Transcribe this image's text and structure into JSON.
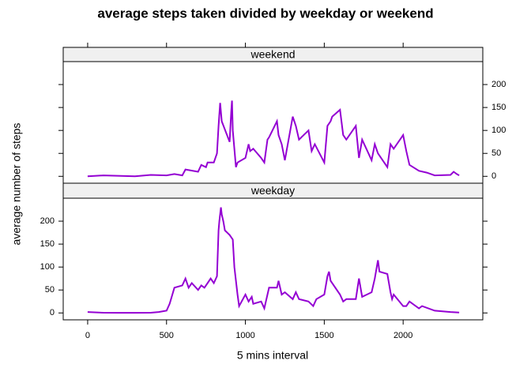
{
  "chart_data": {
    "type": "line",
    "title": "average steps taken divided by weekday or weekend",
    "xlabel": "5 mins interval",
    "ylabel": "average number of steps",
    "color": "#9400d3",
    "xlim": [
      -155,
      2505
    ],
    "ylim": [
      -15,
      250
    ],
    "xticks": [
      0,
      500,
      1000,
      1500,
      2000
    ],
    "yticks": [
      0,
      50,
      100,
      150,
      200
    ],
    "panels": [
      {
        "name": "weekend",
        "x": [
          0,
          100,
          300,
          400,
          500,
          550,
          600,
          620,
          700,
          720,
          750,
          760,
          800,
          820,
          830,
          840,
          850,
          900,
          910,
          915,
          920,
          940,
          950,
          1000,
          1020,
          1030,
          1050,
          1100,
          1120,
          1140,
          1150,
          1200,
          1210,
          1230,
          1250,
          1300,
          1320,
          1340,
          1400,
          1420,
          1440,
          1500,
          1520,
          1540,
          1550,
          1600,
          1620,
          1640,
          1700,
          1720,
          1740,
          1800,
          1820,
          1840,
          1900,
          1920,
          1940,
          2000,
          2020,
          2040,
          2100,
          2150,
          2200,
          2300,
          2320,
          2340,
          2355
        ],
        "values": [
          0,
          2,
          0,
          3,
          2,
          5,
          2,
          15,
          10,
          25,
          20,
          30,
          30,
          50,
          110,
          160,
          120,
          75,
          140,
          165,
          100,
          20,
          30,
          40,
          70,
          55,
          60,
          40,
          30,
          80,
          85,
          120,
          90,
          70,
          35,
          130,
          110,
          80,
          100,
          55,
          70,
          30,
          110,
          120,
          130,
          145,
          90,
          80,
          110,
          40,
          80,
          35,
          70,
          50,
          20,
          70,
          60,
          90,
          55,
          25,
          12,
          8,
          2,
          3,
          10,
          5,
          2
        ]
      },
      {
        "name": "weekday",
        "x": [
          0,
          100,
          200,
          300,
          400,
          450,
          500,
          520,
          550,
          600,
          620,
          640,
          660,
          700,
          720,
          740,
          760,
          780,
          800,
          820,
          830,
          835,
          845,
          850,
          860,
          870,
          900,
          920,
          930,
          950,
          960,
          1000,
          1020,
          1040,
          1050,
          1100,
          1120,
          1140,
          1150,
          1200,
          1210,
          1230,
          1250,
          1300,
          1320,
          1340,
          1400,
          1430,
          1450,
          1500,
          1520,
          1530,
          1540,
          1600,
          1620,
          1640,
          1700,
          1720,
          1730,
          1740,
          1800,
          1820,
          1840,
          1850,
          1900,
          1920,
          1930,
          1940,
          2000,
          2020,
          2040,
          2100,
          2120,
          2200,
          2300,
          2355
        ],
        "values": [
          2,
          0.5,
          0.4,
          0.3,
          0.5,
          2,
          5,
          20,
          55,
          60,
          75,
          55,
          65,
          50,
          60,
          55,
          65,
          75,
          65,
          80,
          180,
          200,
          230,
          215,
          200,
          180,
          170,
          160,
          100,
          40,
          15,
          40,
          25,
          35,
          20,
          25,
          10,
          40,
          55,
          55,
          70,
          40,
          45,
          30,
          45,
          30,
          25,
          15,
          30,
          40,
          80,
          90,
          70,
          40,
          25,
          30,
          30,
          75,
          55,
          35,
          45,
          75,
          115,
          90,
          85,
          45,
          30,
          40,
          15,
          15,
          25,
          10,
          15,
          5,
          2,
          1
        ]
      }
    ]
  }
}
